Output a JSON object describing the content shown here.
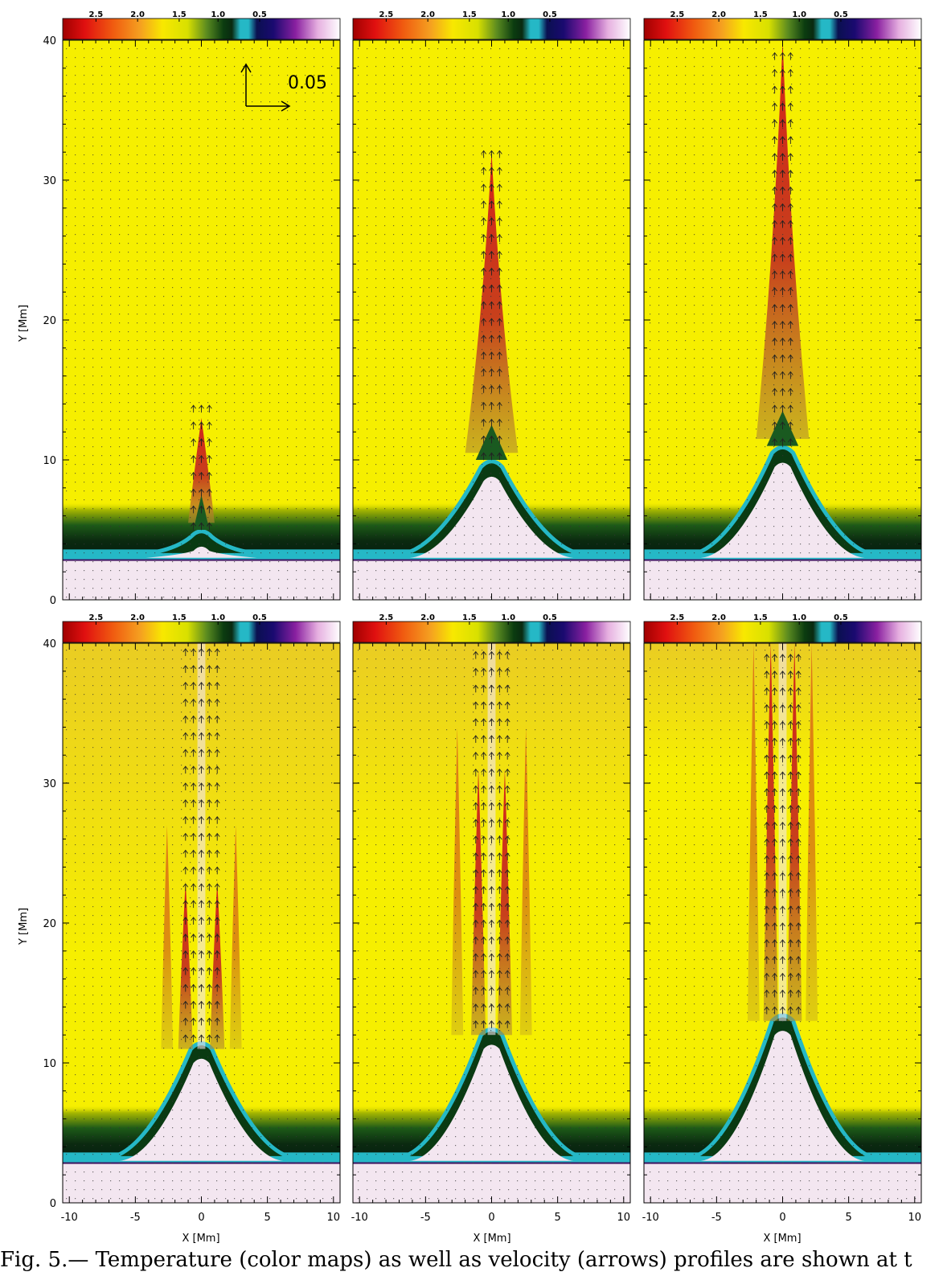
{
  "figure": {
    "ylabel": "Y [Mm]",
    "xlabel": "X [Mm]",
    "yticks": [
      "0",
      "10",
      "20",
      "30",
      "40"
    ],
    "xticks": [
      "-10",
      "-5",
      "0",
      "5",
      "10"
    ],
    "colorbar_labels": [
      "2.5",
      "2.0",
      "1.5",
      "1.0",
      "0.5"
    ],
    "reference_vector_label": "0.05",
    "caption": "Fig. 5.— Temperature (color maps) as well as velocity (arrows) profiles are shown at t"
  },
  "colors": {
    "background_plasma": "#f6ef00",
    "hot_plasma": "#d2241a",
    "transition_teal": "#25b8c6",
    "chromosphere": "#f3e6f0"
  },
  "chart_data": [
    {
      "type": "heatmap",
      "panel": 1,
      "xlabel": "",
      "ylabel": "Y [Mm]",
      "xlim": [
        -10.5,
        10.5
      ],
      "ylim": [
        0,
        40
      ],
      "colorbar": {
        "ticks": [
          2.5,
          2.0,
          1.5,
          1.0,
          0.5
        ]
      },
      "reference_vector": 0.05,
      "features": {
        "jet_height": 13,
        "dome_height": 4.5,
        "transition_layer": 3
      }
    },
    {
      "type": "heatmap",
      "panel": 2,
      "xlabel": "",
      "ylabel": "",
      "xlim": [
        -10.5,
        10.5
      ],
      "ylim": [
        0,
        40
      ],
      "colorbar": {
        "ticks": [
          2.5,
          2.0,
          1.5,
          1.0,
          0.5
        ]
      },
      "features": {
        "jet_height": 32,
        "dome_height": 9.5,
        "transition_layer": 3
      }
    },
    {
      "type": "heatmap",
      "panel": 3,
      "xlabel": "",
      "ylabel": "",
      "xlim": [
        -10.5,
        10.5
      ],
      "ylim": [
        0,
        40
      ],
      "colorbar": {
        "ticks": [
          2.5,
          2.0,
          1.5,
          1.0,
          0.5
        ]
      },
      "features": {
        "jet_height": 40,
        "dome_height": 10.5,
        "transition_layer": 3
      }
    },
    {
      "type": "heatmap",
      "panel": 4,
      "xlabel": "X [Mm]",
      "ylabel": "Y [Mm]",
      "xlim": [
        -10.5,
        10.5
      ],
      "ylim": [
        0,
        40
      ],
      "colorbar": {
        "ticks": [
          2.5,
          2.0,
          1.5,
          1.0,
          0.5
        ]
      },
      "features": {
        "jet_height": 40,
        "dome_height": 11,
        "transition_layer": 3
      }
    },
    {
      "type": "heatmap",
      "panel": 5,
      "xlabel": "X [Mm]",
      "ylabel": "",
      "xlim": [
        -10.5,
        10.5
      ],
      "ylim": [
        0,
        40
      ],
      "colorbar": {
        "ticks": [
          2.5,
          2.0,
          1.5,
          1.0,
          0.5
        ]
      },
      "features": {
        "jet_height": 40,
        "dome_height": 12,
        "transition_layer": 3
      }
    },
    {
      "type": "heatmap",
      "panel": 6,
      "xlabel": "X [Mm]",
      "ylabel": "",
      "xlim": [
        -10.5,
        10.5
      ],
      "ylim": [
        0,
        40
      ],
      "colorbar": {
        "ticks": [
          2.5,
          2.0,
          1.5,
          1.0,
          0.5
        ]
      },
      "features": {
        "jet_height": 40,
        "dome_height": 13,
        "transition_layer": 3
      }
    }
  ]
}
